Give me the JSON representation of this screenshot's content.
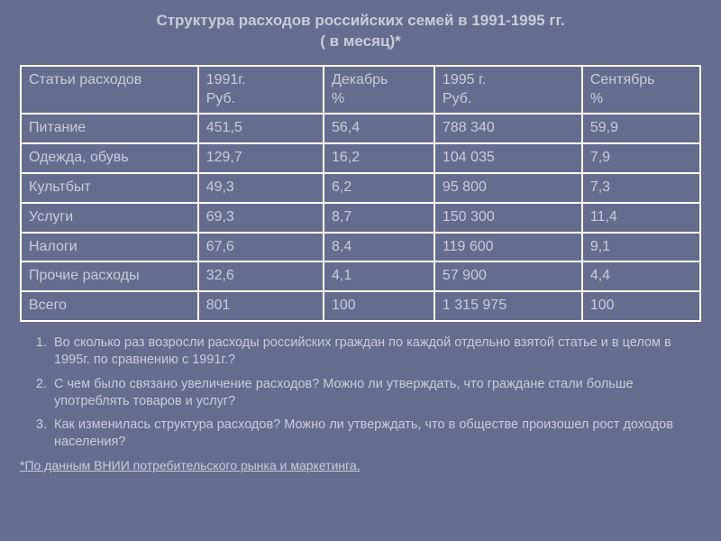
{
  "title_line1": "Структура расходов российских семей в 1991-1995 гг.",
  "title_line2": "( в месяц)*",
  "table": {
    "headers": {
      "c0a": "Статьи расходов",
      "c1a": "1991г.",
      "c1b": "Руб.",
      "c2a": "Декабрь",
      "c2b": "%",
      "c3a": "1995 г.",
      "c3b": "Руб.",
      "c4a": "Сентябрь",
      "c4b": "%"
    },
    "rows": [
      [
        "Питание",
        "451,5",
        "56,4",
        "788 340",
        "59,9"
      ],
      [
        "Одежда, обувь",
        "129,7",
        "16,2",
        "104 035",
        "7,9"
      ],
      [
        "Культбыт",
        "49,3",
        "6,2",
        "95 800",
        "7,3"
      ],
      [
        "Услуги",
        "69,3",
        "8,7",
        "150 300",
        "11,4"
      ],
      [
        "Налоги",
        "67,6",
        "8,4",
        "119 600",
        "9,1"
      ],
      [
        "Прочие расходы",
        "32,6",
        "4,1",
        "57 900",
        "4,4"
      ],
      [
        "Всего",
        "801",
        "100",
        "1 315 975",
        "100"
      ]
    ]
  },
  "questions": [
    "Во сколько раз возросли расходы российских граждан по каждой отдельно взятой статье и в целом в 1995г. по сравнению с 1991г.?",
    "С чем было связано увеличение расходов? Можно ли утверждать, что граждане стали больше употреблять товаров и услуг?",
    "Как изменилась структура расходов? Можно ли утверждать, что в обществе произошел рост доходов населения?"
  ],
  "footnote": "*По данным ВНИИ потребительского рынка и маркетинга.",
  "colors": {
    "background": "#646d8e",
    "text": "#c8ccda",
    "border": "#ffffff"
  }
}
